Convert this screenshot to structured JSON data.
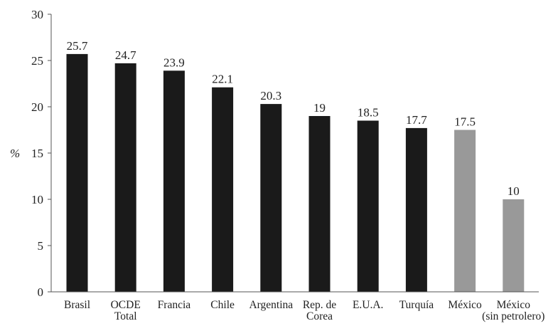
{
  "chart_data": {
    "type": "bar",
    "title": "",
    "xlabel": "",
    "ylabel": "%",
    "ylim": [
      0,
      30
    ],
    "yticks": [
      0,
      5,
      10,
      15,
      20,
      25,
      30
    ],
    "grid": false,
    "categories": [
      [
        "Brasil"
      ],
      [
        "OCDE",
        "Total"
      ],
      [
        "Francia"
      ],
      [
        "Chile"
      ],
      [
        "Argentina"
      ],
      [
        "Rep. de",
        "Corea"
      ],
      [
        "E.U.A."
      ],
      [
        "Turquía"
      ],
      [
        "México"
      ],
      [
        "México",
        "(sin petrolero)"
      ]
    ],
    "values": [
      25.7,
      24.7,
      23.9,
      22.1,
      20.3,
      19,
      18.5,
      17.7,
      17.5,
      10
    ],
    "data_labels": [
      "25.7",
      "24.7",
      "23.9",
      "22.1",
      "20.3",
      "19",
      "18.5",
      "17.7",
      "17.5",
      "10"
    ],
    "colors": [
      "#1a1a1a",
      "#1a1a1a",
      "#1a1a1a",
      "#1a1a1a",
      "#1a1a1a",
      "#1a1a1a",
      "#1a1a1a",
      "#1a1a1a",
      "#999999",
      "#999999"
    ]
  }
}
